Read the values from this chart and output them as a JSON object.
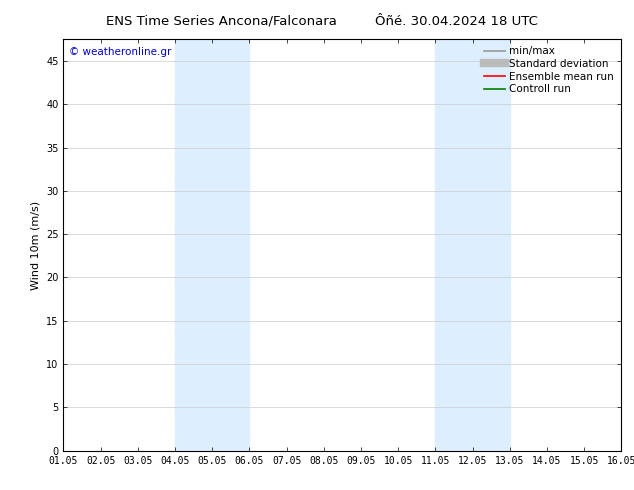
{
  "title_left": "ENS Time Series Ancona/Falconara",
  "title_right": "Ôñé. 30.04.2024 18 UTC",
  "ylabel": "Wind 10m (m/s)",
  "watermark": "© weatheronline.gr",
  "xtick_labels": [
    "01.05",
    "02.05",
    "03.05",
    "04.05",
    "05.05",
    "06.05",
    "07.05",
    "08.05",
    "09.05",
    "10.05",
    "11.05",
    "12.05",
    "13.05",
    "14.05",
    "15.05",
    "16.05"
  ],
  "ytick_values": [
    0,
    5,
    10,
    15,
    20,
    25,
    30,
    35,
    40,
    45
  ],
  "ylim": [
    0,
    47.5
  ],
  "xlim": [
    0,
    15
  ],
  "shaded_regions": [
    {
      "xmin": 3.0,
      "xmax": 5.0,
      "color": "#ddeeff"
    },
    {
      "xmin": 10.0,
      "xmax": 12.0,
      "color": "#ddeeff"
    }
  ],
  "legend_items": [
    {
      "label": "min/max",
      "color": "#999999",
      "lw": 1.2,
      "linestyle": "-"
    },
    {
      "label": "Standard deviation",
      "color": "#bbbbbb",
      "lw": 6,
      "linestyle": "-"
    },
    {
      "label": "Ensemble mean run",
      "color": "#ff0000",
      "lw": 1.2,
      "linestyle": "-"
    },
    {
      "label": "Controll run",
      "color": "#008000",
      "lw": 1.2,
      "linestyle": "-"
    }
  ],
  "background_color": "#ffffff",
  "grid_color": "#cccccc",
  "title_fontsize": 9.5,
  "label_fontsize": 8,
  "tick_fontsize": 7,
  "watermark_color": "#0000cc",
  "watermark_fontsize": 7.5,
  "legend_fontsize": 7.5
}
